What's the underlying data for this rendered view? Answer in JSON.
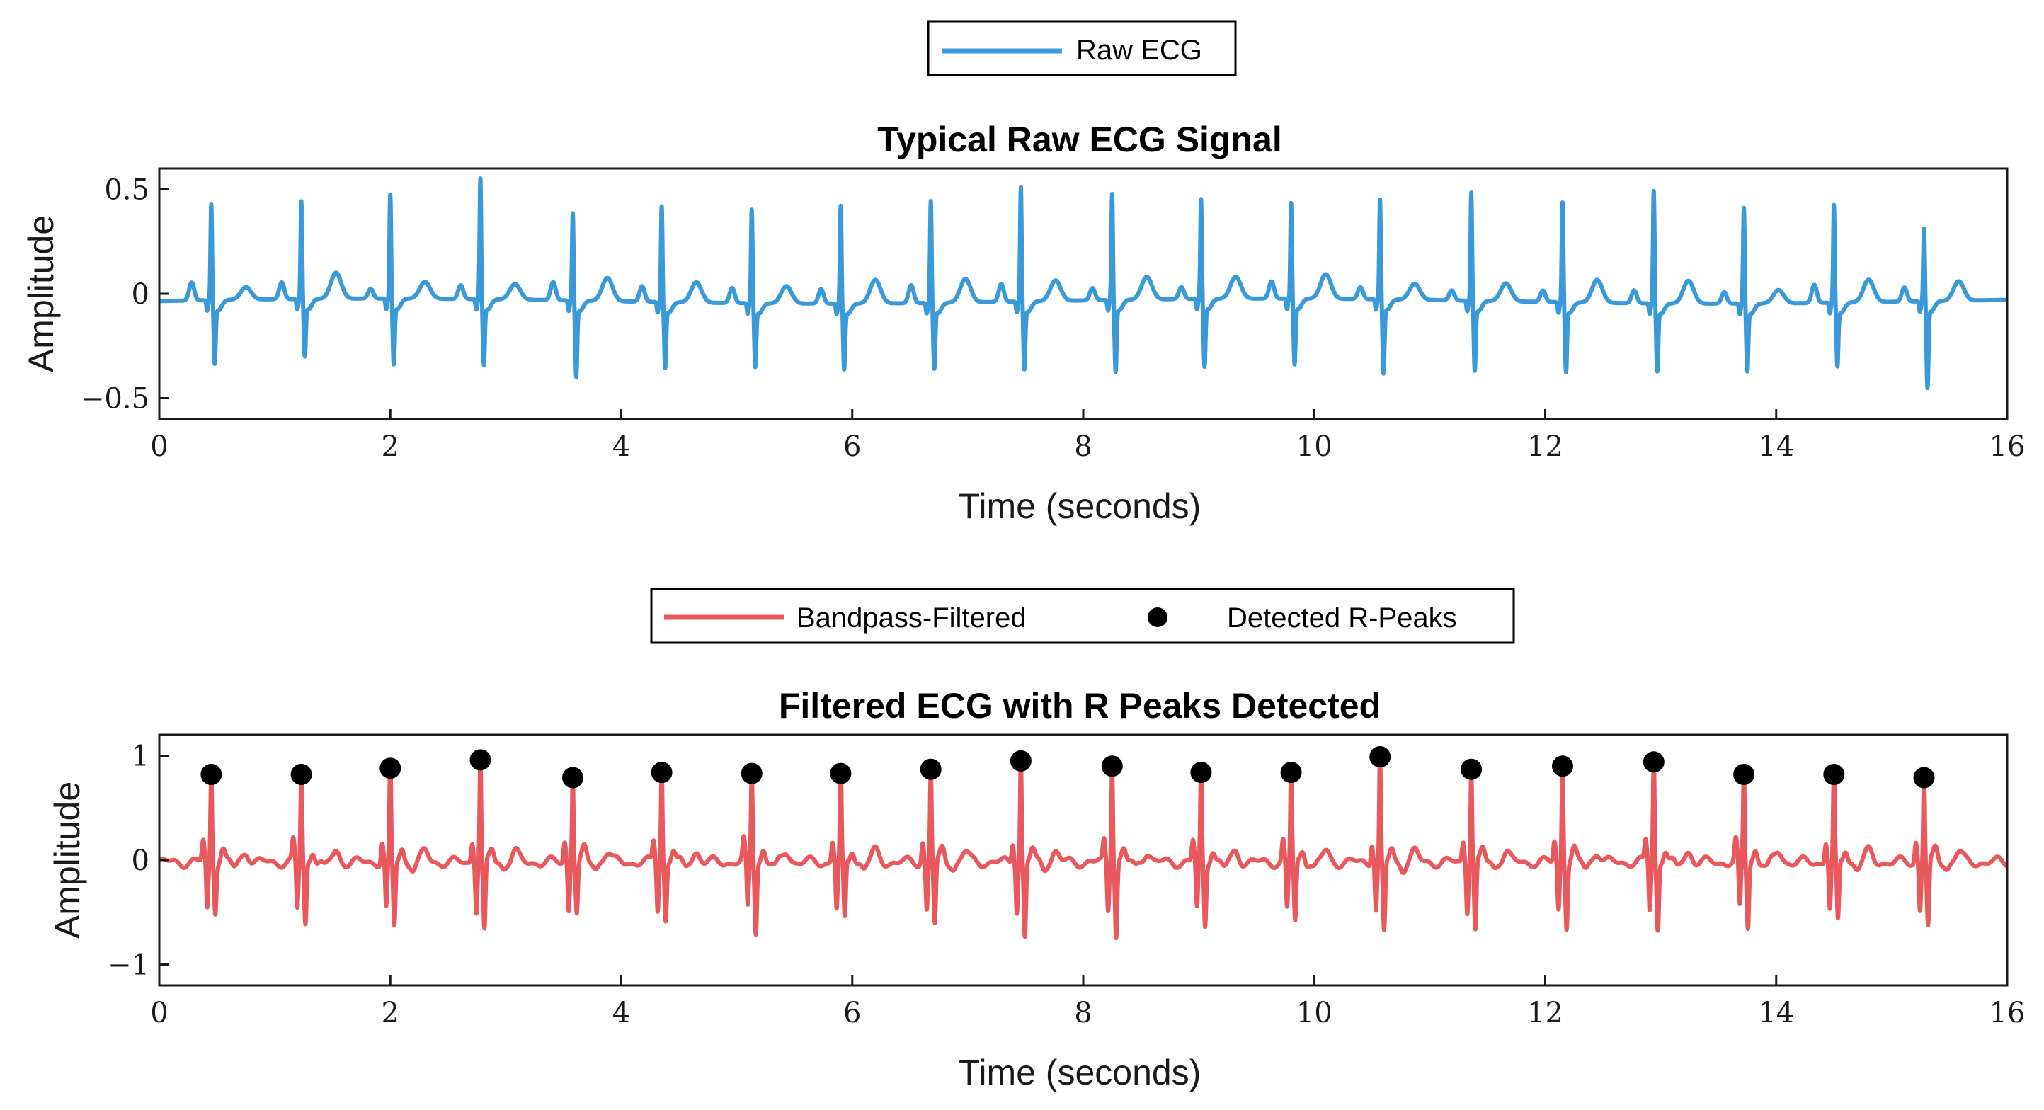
{
  "colors": {
    "raw": "#3a9ad9",
    "filtered": "#e8585d",
    "peaks": "#000000"
  },
  "chart_data": [
    {
      "type": "line",
      "title": "Typical Raw ECG Signal",
      "xlabel": "Time (seconds)",
      "ylabel": "Amplitude",
      "xlim": [
        0,
        16
      ],
      "ylim": [
        -0.6,
        0.6
      ],
      "xticks": [
        0,
        2,
        4,
        6,
        8,
        10,
        12,
        14,
        16
      ],
      "yticks": [
        -0.5,
        0,
        0.5
      ],
      "ytick_labels": [
        "−0.5",
        "0",
        "0.5"
      ],
      "legend": [
        "Raw ECG"
      ],
      "legend_position": "top-center, outside",
      "series": [
        {
          "name": "Raw ECG",
          "beat_times": [
            0.45,
            1.23,
            2.0,
            2.78,
            3.58,
            4.35,
            5.13,
            5.9,
            6.68,
            7.46,
            8.25,
            9.02,
            9.8,
            10.57,
            11.36,
            12.15,
            12.94,
            13.72,
            14.5,
            15.28
          ],
          "r_amplitudes": [
            0.43,
            0.44,
            0.47,
            0.55,
            0.39,
            0.43,
            0.42,
            0.44,
            0.46,
            0.52,
            0.48,
            0.45,
            0.43,
            0.45,
            0.49,
            0.45,
            0.51,
            0.43,
            0.44,
            0.32
          ],
          "s_amplitudes": [
            -0.31,
            -0.28,
            -0.32,
            -0.32,
            -0.37,
            -0.32,
            -0.31,
            -0.32,
            -0.32,
            -0.33,
            -0.35,
            -0.33,
            -0.32,
            -0.36,
            -0.34,
            -0.34,
            -0.33,
            -0.33,
            -0.31,
            -0.42
          ]
        }
      ]
    },
    {
      "type": "line",
      "title": "Filtered ECG with R Peaks Detected",
      "xlabel": "Time (seconds)",
      "ylabel": "Amplitude",
      "xlim": [
        0,
        16
      ],
      "ylim": [
        -1.2,
        1.2
      ],
      "xticks": [
        0,
        2,
        4,
        6,
        8,
        10,
        12,
        14,
        16
      ],
      "yticks": [
        -1,
        0,
        1
      ],
      "ytick_labels": [
        "−1",
        "0",
        "1"
      ],
      "legend": [
        "Bandpass-Filtered",
        "Detected R-Peaks"
      ],
      "legend_position": "top-center, outside",
      "series": [
        {
          "name": "Bandpass-Filtered",
          "s_amplitudes": [
            -0.45,
            -0.6,
            -0.62,
            -0.68,
            -0.48,
            -0.55,
            -0.66,
            -0.56,
            -0.6,
            -0.72,
            -0.7,
            -0.6,
            -0.58,
            -0.68,
            -0.66,
            -0.6,
            -0.64,
            -0.62,
            -0.58,
            -0.62
          ]
        },
        {
          "name": "Detected R-Peaks",
          "x": [
            0.45,
            1.23,
            2.0,
            2.78,
            3.58,
            4.35,
            5.13,
            5.9,
            6.68,
            7.46,
            8.25,
            9.02,
            9.8,
            10.57,
            11.36,
            12.15,
            12.94,
            13.72,
            14.5,
            15.28
          ],
          "y": [
            0.82,
            0.82,
            0.88,
            0.96,
            0.79,
            0.84,
            0.83,
            0.83,
            0.87,
            0.95,
            0.9,
            0.84,
            0.84,
            0.99,
            0.87,
            0.9,
            0.94,
            0.82,
            0.82,
            0.79
          ]
        }
      ]
    }
  ]
}
